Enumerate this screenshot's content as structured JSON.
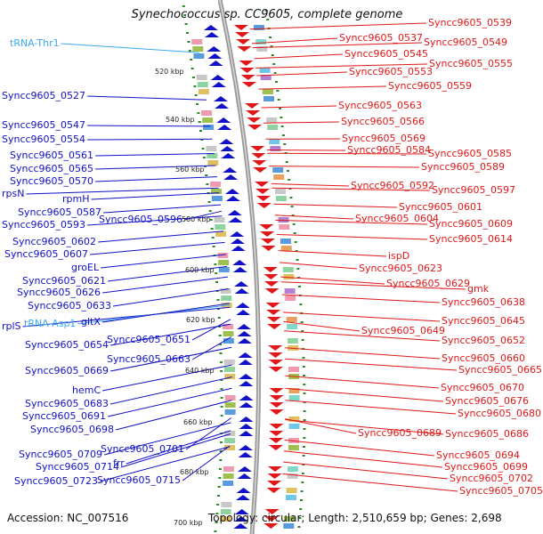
{
  "title": "Synechococcus sp. CC9605, complete genome",
  "accession": "Accession: NC_007516",
  "stats": "Topology: circular; Length: 2,510,659 bp; Genes: 2,698",
  "ticks": [
    "520 kbp",
    "540 kbp",
    "560 kbp",
    "580 kbp",
    "600 kbp",
    "620 kbp",
    "640 kbp",
    "660 kbp",
    "680 kbp",
    "700 kbp"
  ],
  "left_labels": [
    "tRNA-Thr1",
    "Syncc9605_0527",
    "Syncc9605_0547",
    "Syncc9605_0554",
    "Syncc9605_0561",
    "Syncc9605_0565",
    "Syncc9605_0570",
    "rpsN",
    "rpmH",
    "Syncc9605_0587",
    "Syncc9605_0593",
    "Syncc9605_0596",
    "Syncc9605_0602",
    "Syncc9605_0607",
    "groEL",
    "Syncc9605_0621",
    "Syncc9605_0626",
    "Syncc9605_0633",
    "rplS",
    "tRNA-Asp1",
    "gltX",
    "Syncc9605_0654",
    "Syncc9605_0651",
    "Syncc9605_0663",
    "Syncc9605_0669",
    "hemC",
    "Syncc9605_0683",
    "Syncc9605_0691",
    "Syncc9605_0698",
    "Syncc9605_0701",
    "Syncc9605_0709",
    "frr",
    "Syncc9605_0714",
    "Syncc9605_0723",
    "Syncc9605_0715"
  ],
  "right_labels": [
    "Syncc9605_0539",
    "Syncc9605_0537",
    "Syncc9605_0549",
    "Syncc9605_0545",
    "Syncc9605_0555",
    "Syncc9605_0553",
    "Syncc9605_0559",
    "Syncc9605_0563",
    "Syncc9605_0566",
    "Syncc9605_0569",
    "Syncc9605_0584",
    "Syncc9605_0585",
    "Syncc9605_0589",
    "Syncc9605_0592",
    "Syncc9605_0597",
    "Syncc9605_0601",
    "Syncc9605_0604",
    "Syncc9605_0609",
    "Syncc9605_0614",
    "ispD",
    "Syncc9605_0623",
    "Syncc9605_0629",
    "gmk",
    "Syncc9605_0638",
    "Syncc9605_0645",
    "Syncc9605_0649",
    "Syncc9605_0652",
    "Syncc9605_0660",
    "Syncc9605_0665",
    "Syncc9605_0670",
    "Syncc9605_0676",
    "Syncc9605_0680",
    "Syncc9605_0689",
    "Syncc9605_0686",
    "Syncc9605_0694",
    "Syncc9605_0699",
    "Syncc9605_0702",
    "Syncc9605_0705"
  ],
  "colors": {
    "forward": "#1111c8",
    "reverse": "#e01818",
    "rna": "#3aaaf0",
    "tick": "#2a8a2a",
    "backbone": "#9a9a9a"
  }
}
